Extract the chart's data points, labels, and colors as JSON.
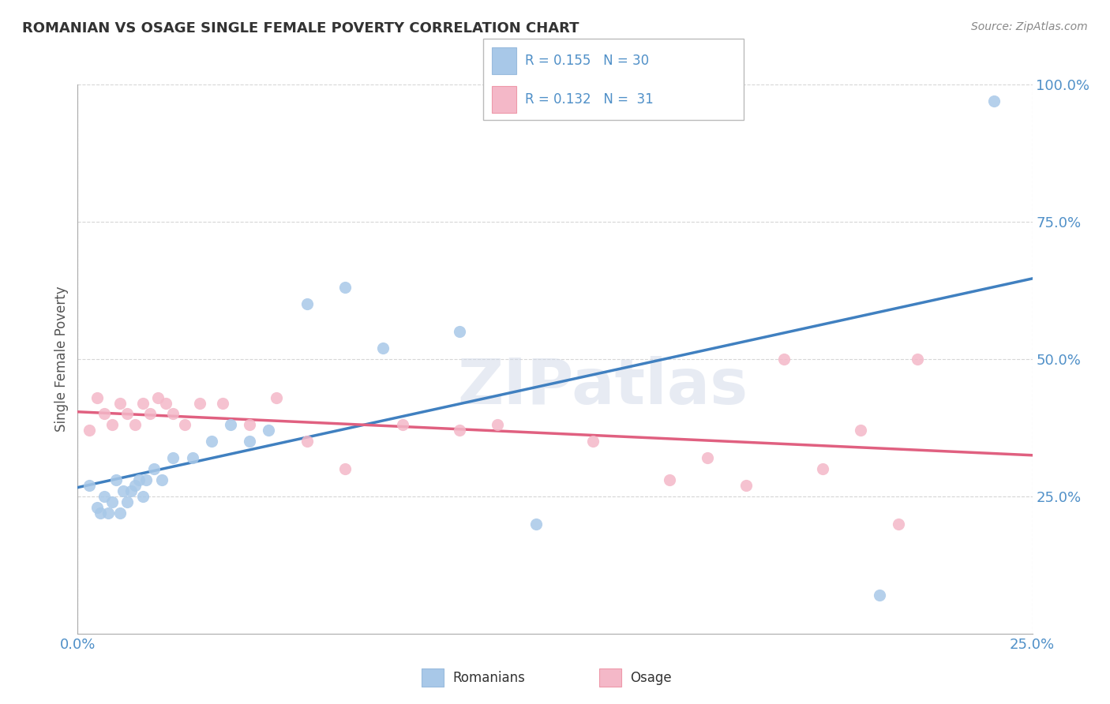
{
  "title": "ROMANIAN VS OSAGE SINGLE FEMALE POVERTY CORRELATION CHART",
  "source": "Source: ZipAtlas.com",
  "ylabel": "Single Female Poverty",
  "xlim": [
    0.0,
    0.25
  ],
  "ylim": [
    0.0,
    1.0
  ],
  "ytick_positions": [
    0.25,
    0.5,
    0.75,
    1.0
  ],
  "ytick_labels": [
    "25.0%",
    "50.0%",
    "75.0%",
    "100.0%"
  ],
  "blue_scatter_color": "#A8C8E8",
  "pink_scatter_color": "#F4B8C8",
  "blue_line_color": "#4080C0",
  "pink_line_color": "#E06080",
  "blue_label_color": "#4080C0",
  "tick_color": "#5090C8",
  "title_color": "#333333",
  "source_color": "#888888",
  "grid_color": "#CCCCCC",
  "background_color": "#FFFFFF",
  "watermark": "ZIPatlas",
  "legend_R_blue": "R = 0.155",
  "legend_N_blue": "N = 30",
  "legend_R_pink": "R = 0.132",
  "legend_N_pink": "N =  31",
  "romanians_x": [
    0.003,
    0.005,
    0.006,
    0.007,
    0.008,
    0.009,
    0.01,
    0.011,
    0.012,
    0.013,
    0.014,
    0.015,
    0.016,
    0.017,
    0.018,
    0.02,
    0.022,
    0.025,
    0.03,
    0.035,
    0.04,
    0.045,
    0.05,
    0.06,
    0.07,
    0.08,
    0.1,
    0.12,
    0.21,
    0.24
  ],
  "romanians_y": [
    0.27,
    0.23,
    0.22,
    0.25,
    0.22,
    0.24,
    0.28,
    0.22,
    0.26,
    0.24,
    0.26,
    0.27,
    0.28,
    0.25,
    0.28,
    0.3,
    0.28,
    0.32,
    0.32,
    0.35,
    0.38,
    0.35,
    0.37,
    0.6,
    0.63,
    0.52,
    0.55,
    0.2,
    0.07,
    0.97
  ],
  "osage_x": [
    0.003,
    0.005,
    0.007,
    0.009,
    0.011,
    0.013,
    0.015,
    0.017,
    0.019,
    0.021,
    0.023,
    0.025,
    0.028,
    0.032,
    0.038,
    0.045,
    0.052,
    0.06,
    0.07,
    0.085,
    0.1,
    0.11,
    0.135,
    0.155,
    0.165,
    0.175,
    0.185,
    0.195,
    0.205,
    0.215,
    0.22
  ],
  "osage_y": [
    0.37,
    0.43,
    0.4,
    0.38,
    0.42,
    0.4,
    0.38,
    0.42,
    0.4,
    0.43,
    0.42,
    0.4,
    0.38,
    0.42,
    0.42,
    0.38,
    0.43,
    0.35,
    0.3,
    0.38,
    0.37,
    0.38,
    0.35,
    0.28,
    0.32,
    0.27,
    0.5,
    0.3,
    0.37,
    0.2,
    0.5
  ]
}
